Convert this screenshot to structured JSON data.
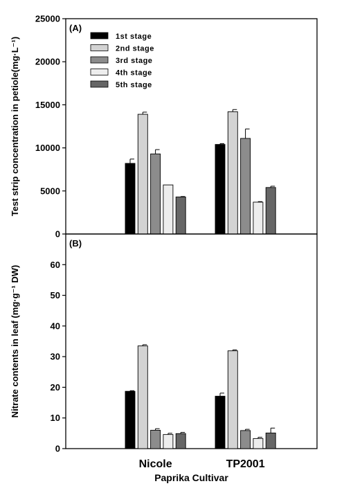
{
  "chart_data": [
    {
      "type": "bar",
      "panel_label": "(A)",
      "ylabel": "Test strip concentration in petiole(mg·L⁻¹)",
      "ylim": [
        0,
        25000
      ],
      "yticks": [
        0,
        5000,
        10000,
        15000,
        20000,
        25000
      ],
      "categories": [
        "Nicole",
        "TP2001"
      ],
      "legend_position": "top-left",
      "series": [
        {
          "name": "1st stage",
          "color": "#000000",
          "values": [
            8200,
            10400
          ],
          "errors": [
            500,
            100
          ]
        },
        {
          "name": "2nd stage",
          "color": "#d3d3d3",
          "values": [
            13900,
            14200
          ],
          "errors": [
            250,
            250
          ]
        },
        {
          "name": "3rd stage",
          "color": "#8c8c8c",
          "values": [
            9300,
            11100
          ],
          "errors": [
            500,
            1100
          ]
        },
        {
          "name": "4th stage",
          "color": "#ededed",
          "values": [
            5700,
            3700
          ],
          "errors": [
            0,
            60
          ]
        },
        {
          "name": "5th stage",
          "color": "#666666",
          "values": [
            4300,
            5400
          ],
          "errors": [
            50,
            150
          ]
        }
      ]
    },
    {
      "type": "bar",
      "panel_label": "(B)",
      "ylabel": "Nitrate contents in leaf (mg·g⁻¹ DW)",
      "ylim": [
        0,
        70
      ],
      "yticks": [
        0,
        10,
        20,
        30,
        40,
        50,
        60
      ],
      "categories": [
        "Nicole",
        "TP2001"
      ],
      "xlabel": "Paprika Cultivar",
      "series": [
        {
          "name": "1st stage",
          "color": "#000000",
          "values": [
            18.7,
            17.1
          ],
          "errors": [
            0.2,
            1.0
          ]
        },
        {
          "name": "2nd stage",
          "color": "#d3d3d3",
          "values": [
            33.5,
            31.9
          ],
          "errors": [
            0.4,
            0.3
          ]
        },
        {
          "name": "3rd stage",
          "color": "#8c8c8c",
          "values": [
            6.0,
            5.9
          ],
          "errors": [
            0.5,
            0.4
          ]
        },
        {
          "name": "4th stage",
          "color": "#ededed",
          "values": [
            4.6,
            3.3
          ],
          "errors": [
            0.4,
            0.4
          ]
        },
        {
          "name": "5th stage",
          "color": "#666666",
          "values": [
            4.9,
            5.1
          ],
          "errors": [
            0.4,
            1.6
          ]
        }
      ]
    }
  ]
}
